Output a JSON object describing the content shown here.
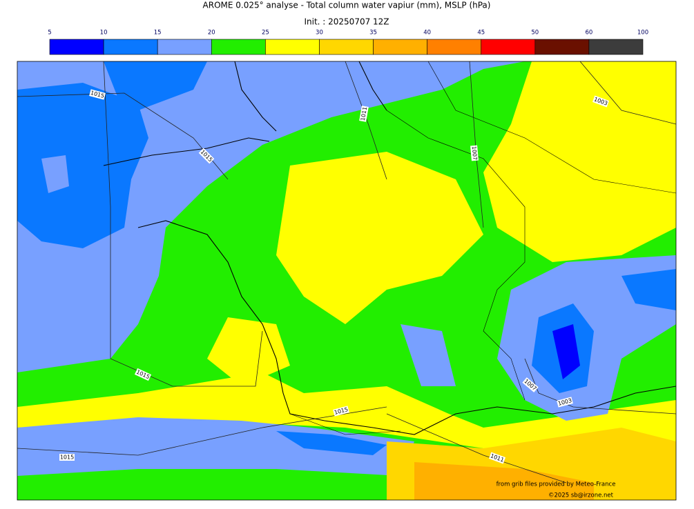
{
  "header": {
    "title": "AROME 0.025° analyse - Total column water vapiur (mm), MSLP (hPa)",
    "init": "Init. : 20250707 12Z"
  },
  "colorbar": {
    "ticks": [
      5,
      10,
      15,
      20,
      25,
      30,
      35,
      40,
      45,
      50,
      60,
      100
    ],
    "colors": [
      "#0000ff",
      "#0a78ff",
      "#78a0ff",
      "#22ee00",
      "#ffff00",
      "#ffd700",
      "#ffb000",
      "#ff8000",
      "#ff0000",
      "#6a1000",
      "#3c3c3c"
    ]
  },
  "map": {
    "contour_labels": [
      "1015",
      "1011",
      "1015",
      "1007",
      "1003",
      "1015",
      "1007",
      "1003",
      "1015",
      "1015",
      "1011"
    ]
  },
  "credits": {
    "source": "from grib files provided by Meteo-France",
    "copyright": "©2025 sb@irzone.net"
  }
}
